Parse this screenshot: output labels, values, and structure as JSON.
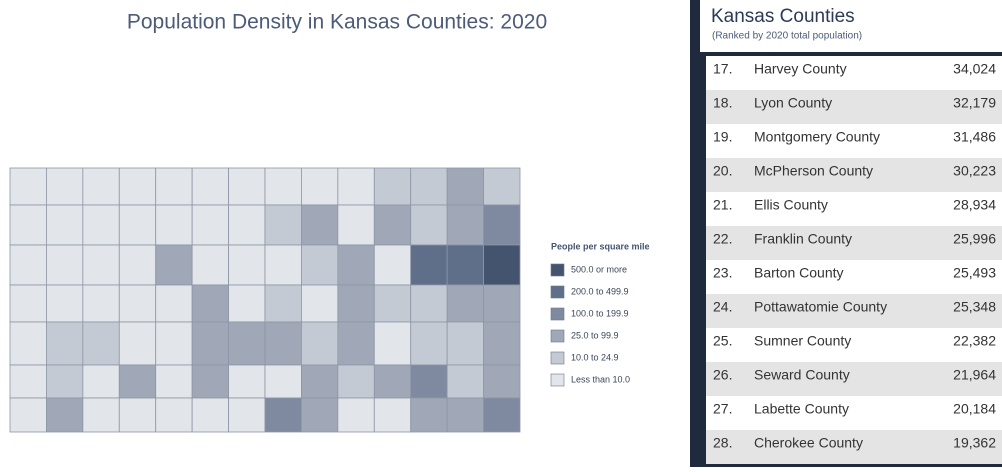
{
  "map": {
    "title": "Population Density in Kansas Counties: 2020",
    "legend": {
      "title": "People per square mile",
      "items": [
        {
          "label": "500.0 or more",
          "color": "#44546f"
        },
        {
          "label": "200.0 to 499.9",
          "color": "#5f6e89"
        },
        {
          "label": "100.0 to 199.9",
          "color": "#7f8aa0"
        },
        {
          "label": "25.0 to 99.9",
          "color": "#a0a8b8"
        },
        {
          "label": "10.0 to 24.9",
          "color": "#c4cad4"
        },
        {
          "label": "Less than 10.0",
          "color": "#e2e5ea"
        }
      ]
    }
  },
  "table": {
    "title": "Kansas Counties",
    "subtitle": "(Ranked by 2020 total population)",
    "rows": [
      {
        "rank": "17.",
        "county": "Harvey County",
        "population": "34,024"
      },
      {
        "rank": "18.",
        "county": "Lyon County",
        "population": "32,179"
      },
      {
        "rank": "19.",
        "county": "Montgomery County",
        "population": "31,486"
      },
      {
        "rank": "20.",
        "county": "McPherson County",
        "population": "30,223"
      },
      {
        "rank": "21.",
        "county": "Ellis County",
        "population": "28,934"
      },
      {
        "rank": "22.",
        "county": "Franklin County",
        "population": "25,996"
      },
      {
        "rank": "23.",
        "county": "Barton County",
        "population": "25,493"
      },
      {
        "rank": "24.",
        "county": "Pottawatomie County",
        "population": "25,348"
      },
      {
        "rank": "25.",
        "county": "Sumner County",
        "population": "22,382"
      },
      {
        "rank": "26.",
        "county": "Seward County",
        "population": "21,964"
      },
      {
        "rank": "27.",
        "county": "Labette County",
        "population": "20,184"
      },
      {
        "rank": "28.",
        "county": "Cherokee County",
        "population": "19,362"
      }
    ]
  }
}
